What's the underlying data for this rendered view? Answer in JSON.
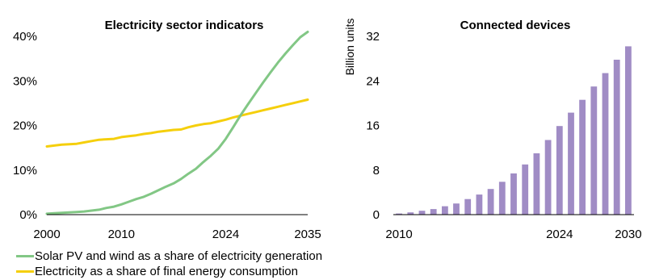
{
  "chart_data": [
    {
      "type": "line",
      "title": "Electricity sector indicators",
      "xlabel": "",
      "ylabel": "",
      "xlim": [
        2000,
        2035
      ],
      "ylim": [
        0,
        40
      ],
      "x_ticks": [
        "2000",
        "2010",
        "2024",
        "2035"
      ],
      "x_tick_values": [
        2000,
        2010,
        2024,
        2035
      ],
      "y_ticks": [
        "0%",
        "10%",
        "20%",
        "30%",
        "40%"
      ],
      "y_tick_values": [
        0,
        10,
        20,
        30,
        40
      ],
      "grid": false,
      "series": [
        {
          "name": "Solar PV and wind as a share of electricity generation",
          "color": "#82c785",
          "x": [
            2000,
            2001,
            2002,
            2003,
            2004,
            2005,
            2006,
            2007,
            2008,
            2009,
            2010,
            2011,
            2012,
            2013,
            2014,
            2015,
            2016,
            2017,
            2018,
            2019,
            2020,
            2021,
            2022,
            2023,
            2024,
            2025,
            2026,
            2027,
            2028,
            2029,
            2030,
            2031,
            2032,
            2033,
            2034,
            2035
          ],
          "values": [
            0.2,
            0.3,
            0.4,
            0.5,
            0.6,
            0.7,
            0.9,
            1.1,
            1.5,
            1.8,
            2.3,
            2.9,
            3.5,
            4.0,
            4.7,
            5.5,
            6.3,
            7.0,
            8.0,
            9.2,
            10.3,
            11.8,
            13.2,
            14.8,
            17.0,
            19.6,
            22.3,
            24.8,
            27.2,
            29.6,
            31.9,
            34.1,
            36.1,
            38.0,
            39.8,
            41.0
          ]
        },
        {
          "name": "Electricity as a share of final energy consumption",
          "color": "#f5cf0c",
          "x": [
            2000,
            2001,
            2002,
            2003,
            2004,
            2005,
            2006,
            2007,
            2008,
            2009,
            2010,
            2011,
            2012,
            2013,
            2014,
            2015,
            2016,
            2017,
            2018,
            2019,
            2020,
            2021,
            2022,
            2023,
            2024,
            2025,
            2026,
            2027,
            2028,
            2029,
            2030,
            2031,
            2032,
            2033,
            2034,
            2035
          ],
          "values": [
            15.3,
            15.5,
            15.7,
            15.8,
            15.9,
            16.2,
            16.5,
            16.8,
            16.9,
            17.0,
            17.4,
            17.6,
            17.8,
            18.1,
            18.3,
            18.6,
            18.8,
            19.0,
            19.1,
            19.6,
            20.0,
            20.3,
            20.5,
            20.9,
            21.3,
            21.8,
            22.2,
            22.6,
            23.0,
            23.4,
            23.8,
            24.2,
            24.6,
            25.0,
            25.4,
            25.8
          ]
        }
      ]
    },
    {
      "type": "bar",
      "title": "Connected devices",
      "xlabel": "",
      "ylabel": "Billion units",
      "ylim": [
        0,
        32
      ],
      "x_ticks": [
        "2010",
        "2024",
        "2030"
      ],
      "x_tick_values": [
        2010,
        2024,
        2030
      ],
      "y_ticks": [
        "0",
        "8",
        "16",
        "24",
        "32"
      ],
      "y_tick_values": [
        0,
        8,
        16,
        24,
        32
      ],
      "grid": false,
      "color": "#a08cc5",
      "categories": [
        2010,
        2011,
        2012,
        2013,
        2014,
        2015,
        2016,
        2017,
        2018,
        2019,
        2020,
        2021,
        2022,
        2023,
        2024,
        2025,
        2026,
        2027,
        2028,
        2029,
        2030
      ],
      "values": [
        0.2,
        0.4,
        0.7,
        1.0,
        1.5,
        2.0,
        2.8,
        3.6,
        4.6,
        5.9,
        7.4,
        9.0,
        11.0,
        13.4,
        15.9,
        18.3,
        20.6,
        23.0,
        25.4,
        27.8,
        30.2
      ]
    }
  ]
}
